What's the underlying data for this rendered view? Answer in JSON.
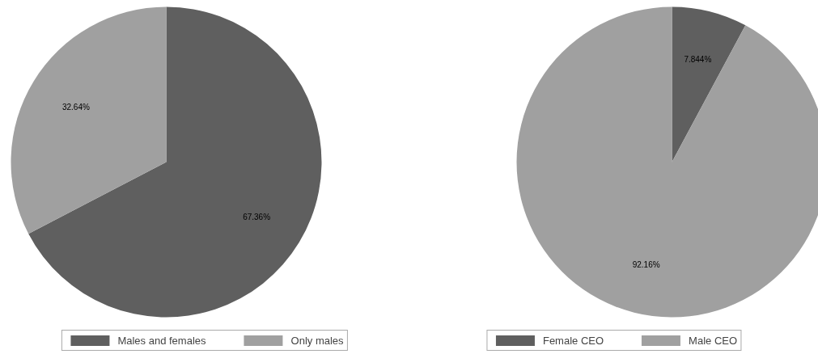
{
  "chart_data": [
    {
      "type": "pie",
      "categories": [
        "Males and females",
        "Only males"
      ],
      "values": [
        67.36,
        32.64
      ],
      "colors": [
        "#5f5f5f",
        "#a0a0a0"
      ],
      "value_labels": [
        "67.36%",
        "32.64%"
      ],
      "legend": "bottom"
    },
    {
      "type": "pie",
      "categories": [
        "Female CEO",
        "Male CEO"
      ],
      "values": [
        7.844,
        92.16
      ],
      "colors": [
        "#5f5f5f",
        "#a0a0a0"
      ],
      "value_labels": [
        "7.844%",
        "92.16%"
      ],
      "legend": "bottom"
    }
  ]
}
